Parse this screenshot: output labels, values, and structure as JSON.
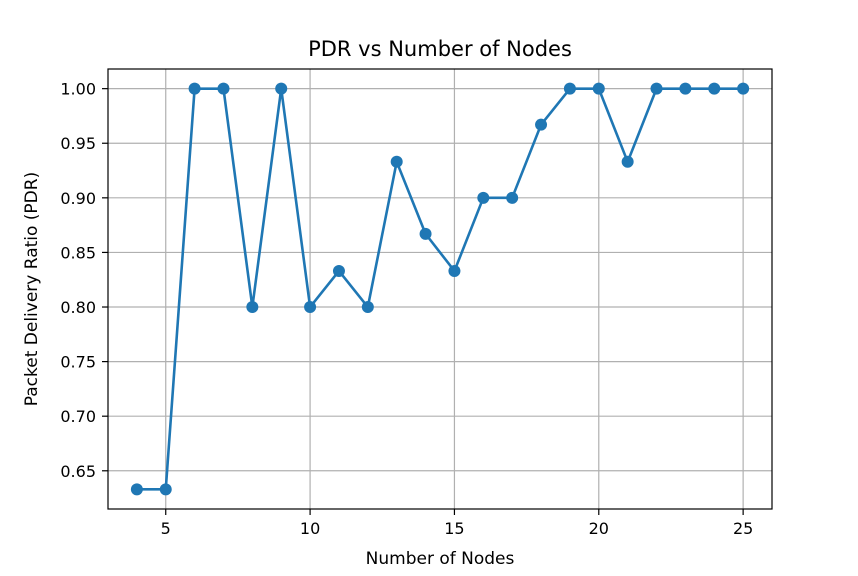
{
  "chart_data": {
    "type": "line",
    "title": "PDR vs Number of Nodes",
    "xlabel": "Number of Nodes",
    "ylabel": "Packet Delivery Ratio (PDR)",
    "xlim": [
      3,
      26
    ],
    "ylim": [
      0.615,
      1.018
    ],
    "xticks": [
      5,
      10,
      15,
      20,
      25
    ],
    "xtick_labels": [
      "5",
      "10",
      "15",
      "20",
      "25"
    ],
    "yticks": [
      0.65,
      0.7,
      0.75,
      0.8,
      0.85,
      0.9,
      0.95,
      1.0
    ],
    "ytick_labels": [
      "0.65",
      "0.70",
      "0.75",
      "0.80",
      "0.85",
      "0.90",
      "0.95",
      "1.00"
    ],
    "grid": true,
    "marker": "circle",
    "series": [
      {
        "color": "#1f77b4",
        "x": [
          4,
          5,
          6,
          7,
          8,
          9,
          10,
          11,
          12,
          13,
          14,
          15,
          16,
          17,
          18,
          19,
          20,
          21,
          22,
          23,
          24,
          25
        ],
        "y": [
          0.633,
          0.633,
          1.0,
          1.0,
          0.8,
          1.0,
          0.8,
          0.833,
          0.8,
          0.933,
          0.867,
          0.833,
          0.9,
          0.9,
          0.967,
          1.0,
          1.0,
          0.933,
          1.0,
          1.0,
          1.0,
          1.0
        ]
      }
    ]
  }
}
